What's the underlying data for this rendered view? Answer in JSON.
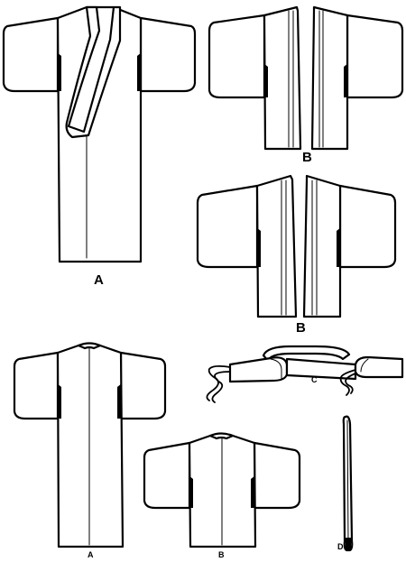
{
  "labels": {
    "view_a_front": "A",
    "view_b_front_long": "B",
    "view_b_front_short": "B",
    "view_a_back": "A",
    "view_b_back": "B",
    "sash": "C",
    "tie": "D"
  },
  "colors": {
    "line": "#000000",
    "fill": "#ffffff"
  }
}
